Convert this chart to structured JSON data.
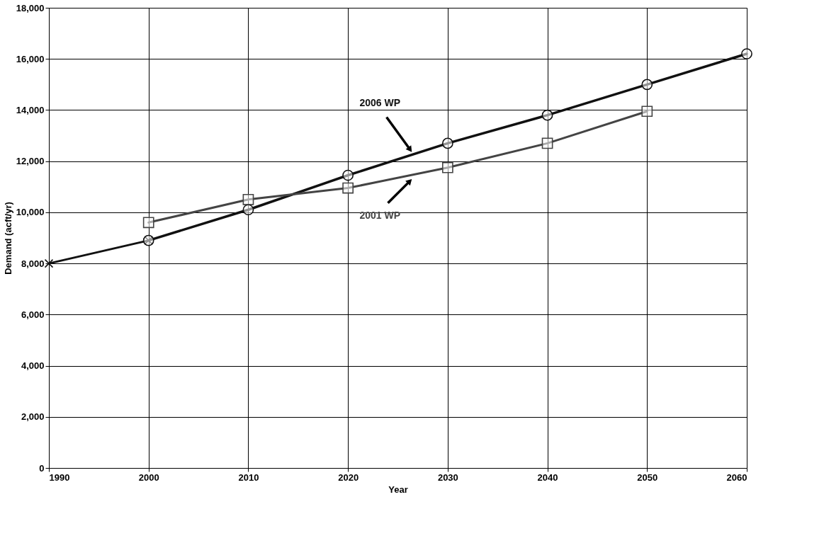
{
  "chart_data": {
    "type": "line",
    "xlabel": "Year",
    "ylabel": "Demand (acft/yr)",
    "xlim": [
      1990,
      2060
    ],
    "ylim": [
      0,
      18000
    ],
    "xticks": [
      1990,
      2000,
      2010,
      2020,
      2030,
      2040,
      2050,
      2060
    ],
    "yticks": [
      {
        "value": 0,
        "label": "0"
      },
      {
        "value": 2000,
        "label": "2,000"
      },
      {
        "value": 4000,
        "label": "4,000"
      },
      {
        "value": 6000,
        "label": "6,000"
      },
      {
        "value": 8000,
        "label": "8,000"
      },
      {
        "value": 10000,
        "label": "10,000"
      },
      {
        "value": 12000,
        "label": "12,000"
      },
      {
        "value": 14000,
        "label": "14,000"
      },
      {
        "value": 16000,
        "label": "16,000"
      },
      {
        "value": 18000,
        "label": "18,000"
      }
    ],
    "grid": true,
    "line_style": "solid",
    "series": [
      {
        "color": "#111111",
        "marker": "cross",
        "x": [
          1990,
          2000
        ],
        "values": [
          8000,
          8900
        ]
      },
      {
        "name": "2006 WP",
        "color": "#111111",
        "marker": "circle",
        "x": [
          2000,
          2010,
          2020,
          2030,
          2040,
          2050,
          2060
        ],
        "values": [
          8900,
          10100,
          11450,
          12700,
          13800,
          15000,
          16200
        ]
      },
      {
        "name": "2001 WP",
        "color": "#444444",
        "marker": "square",
        "x": [
          2000,
          2010,
          2020,
          2030,
          2040,
          2050
        ],
        "values": [
          9600,
          10500,
          10950,
          11750,
          12700,
          13950
        ]
      }
    ]
  }
}
